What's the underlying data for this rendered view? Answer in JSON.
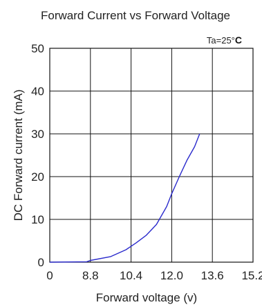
{
  "chart_data": {
    "type": "line",
    "title": "Forward Current vs Forward Voltage",
    "xlabel": "Forward voltage (v)",
    "ylabel": "DC Forward current (mA)",
    "xlim": [
      0,
      15.2
    ],
    "ylim": [
      0,
      50
    ],
    "x_ticks": [
      "0",
      "8.8",
      "10.4",
      "12.0",
      "13.6",
      "15.2"
    ],
    "y_ticks": [
      "0",
      "10",
      "20",
      "30",
      "40",
      "50"
    ],
    "grid": true,
    "annotation": {
      "prefix": "Ta=25°",
      "unit": "C"
    },
    "series": [
      {
        "color": "#2a2acc",
        "points": [
          [
            0.0,
            0.0
          ],
          [
            8.0,
            0.1
          ],
          [
            8.8,
            0.4
          ],
          [
            9.6,
            1.3
          ],
          [
            10.2,
            2.9
          ],
          [
            10.6,
            4.5
          ],
          [
            11.0,
            6.3
          ],
          [
            11.4,
            8.8
          ],
          [
            11.8,
            13.0
          ],
          [
            12.0,
            16.0
          ],
          [
            12.3,
            20.0
          ],
          [
            12.6,
            23.8
          ],
          [
            12.9,
            27.0
          ],
          [
            13.1,
            30.0
          ]
        ]
      }
    ]
  }
}
